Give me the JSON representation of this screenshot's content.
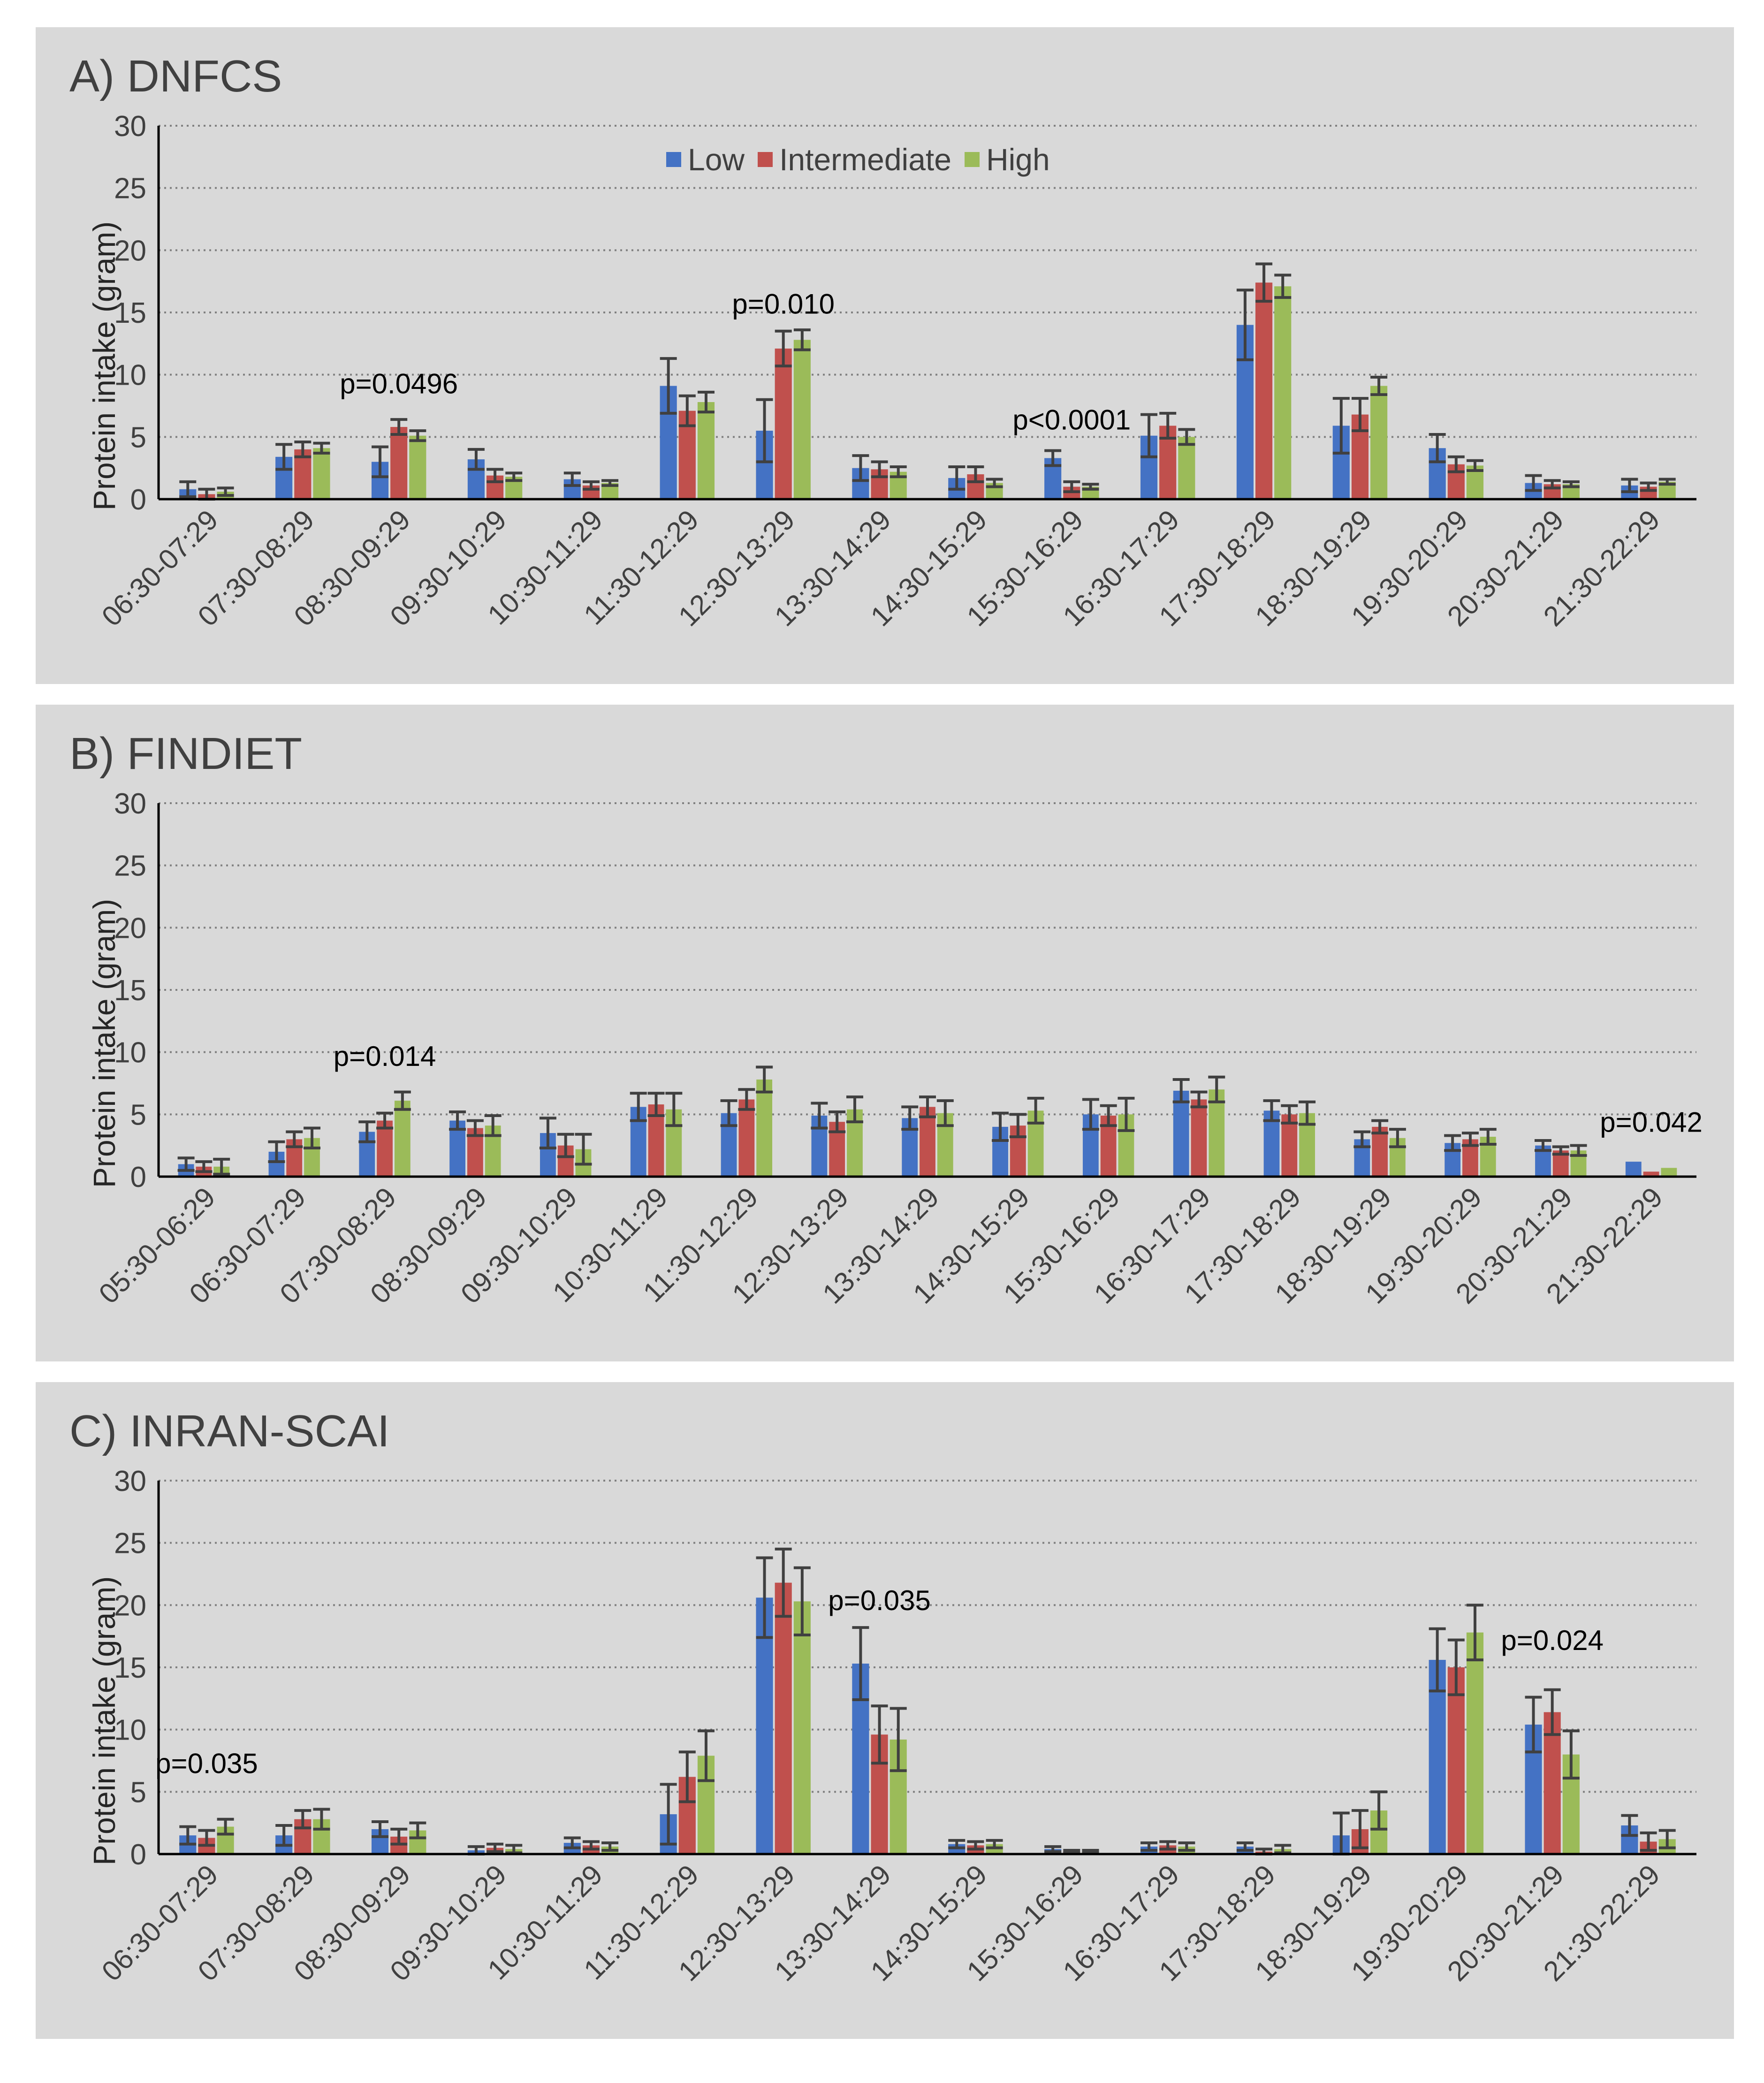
{
  "colors": {
    "low": "#4472c4",
    "intermediate": "#c0504d",
    "high": "#9bbb59",
    "panel_bg": "#d9d9d9",
    "axis": "#000000",
    "grid": "#808080",
    "text": "#404040"
  },
  "chart_data": [
    {
      "type": "bar",
      "title": "A) DNFCS",
      "ylabel": "Protein intake (gram)",
      "ylim": [
        0,
        30
      ],
      "yticks": [
        0,
        5,
        10,
        15,
        20,
        25,
        30
      ],
      "legend": [
        "Low",
        "Intermediate",
        "High"
      ],
      "legend_position": "top-center",
      "categories": [
        "06:30-07:29",
        "07:30-08:29",
        "08:30-09:29",
        "09:30-10:29",
        "10:30-11:29",
        "11:30-12:29",
        "12:30-13:29",
        "13:30-14:29",
        "14:30-15:29",
        "15:30-16:29",
        "16:30-17:29",
        "17:30-18:29",
        "18:30-19:29",
        "19:30-20:29",
        "20:30-21:29",
        "21:30-22:29"
      ],
      "series": [
        {
          "name": "Low",
          "values": [
            0.8,
            3.4,
            3.0,
            3.2,
            1.6,
            9.1,
            5.5,
            2.5,
            1.7,
            3.3,
            5.1,
            14.0,
            5.9,
            4.1,
            1.3,
            1.1
          ],
          "errors": [
            0.6,
            1.0,
            1.2,
            0.8,
            0.5,
            2.2,
            2.5,
            1.0,
            0.9,
            0.6,
            1.7,
            2.8,
            2.2,
            1.1,
            0.6,
            0.5
          ]
        },
        {
          "name": "Intermediate",
          "values": [
            0.4,
            4.0,
            5.8,
            1.9,
            1.1,
            7.1,
            12.1,
            2.4,
            2.0,
            1.0,
            5.9,
            17.4,
            6.8,
            2.8,
            1.2,
            1.0
          ],
          "errors": [
            0.4,
            0.6,
            0.6,
            0.5,
            0.3,
            1.2,
            1.4,
            0.6,
            0.6,
            0.4,
            1.0,
            1.5,
            1.3,
            0.6,
            0.3,
            0.3
          ]
        },
        {
          "name": "High",
          "values": [
            0.6,
            4.1,
            5.1,
            1.8,
            1.3,
            7.8,
            12.8,
            2.2,
            1.3,
            1.0,
            5.0,
            17.1,
            9.1,
            2.7,
            1.2,
            1.4
          ],
          "errors": [
            0.3,
            0.4,
            0.4,
            0.3,
            0.2,
            0.8,
            0.8,
            0.4,
            0.3,
            0.2,
            0.6,
            0.9,
            0.7,
            0.4,
            0.2,
            0.2
          ]
        }
      ],
      "annotations": [
        {
          "text": "p=0.0496",
          "category_index": 2,
          "value": 8.5
        },
        {
          "text": "p=0.010",
          "category_index": 6,
          "value": 14.9
        },
        {
          "text": "p<0.0001",
          "category_index": 9,
          "value": 5.6
        }
      ]
    },
    {
      "type": "bar",
      "title": "B) FINDIET",
      "ylabel": "Protein intake (gram)",
      "ylim": [
        0,
        30
      ],
      "yticks": [
        0,
        5,
        10,
        15,
        20,
        25,
        30
      ],
      "categories": [
        "05:30-06:29",
        "06:30-07:29",
        "07:30-08:29",
        "08:30-09:29",
        "09:30-10:29",
        "10:30-11:29",
        "11:30-12:29",
        "12:30-13:29",
        "13:30-14:29",
        "14:30-15:29",
        "15:30-16:29",
        "16:30-17:29",
        "17:30-18:29",
        "18:30-19:29",
        "19:30-20:29",
        "20:30-21:29",
        "21:30-22:29"
      ],
      "series": [
        {
          "name": "Low",
          "values": [
            1.0,
            2.0,
            3.6,
            4.5,
            3.5,
            5.6,
            5.1,
            4.9,
            4.7,
            4.0,
            5.0,
            6.9,
            5.3,
            3.0,
            2.7,
            2.5,
            1.2
          ],
          "errors": [
            0.5,
            0.8,
            0.8,
            0.7,
            1.2,
            1.1,
            1.0,
            1.0,
            0.9,
            1.1,
            1.2,
            0.9,
            0.8,
            0.6,
            0.6,
            0.4,
            0.0
          ]
        },
        {
          "name": "Intermediate",
          "values": [
            0.8,
            3.0,
            4.5,
            3.9,
            2.5,
            5.8,
            6.2,
            4.4,
            5.6,
            4.1,
            4.9,
            6.2,
            5.0,
            4.0,
            3.0,
            2.1,
            0.4
          ],
          "errors": [
            0.4,
            0.6,
            0.6,
            0.6,
            0.9,
            0.9,
            0.8,
            0.8,
            0.8,
            0.9,
            0.8,
            0.6,
            0.7,
            0.5,
            0.5,
            0.3,
            0.0
          ]
        },
        {
          "name": "High",
          "values": [
            0.8,
            3.1,
            6.1,
            4.1,
            2.2,
            5.4,
            7.8,
            5.4,
            5.1,
            5.3,
            5.0,
            7.0,
            5.1,
            3.1,
            3.2,
            2.1,
            0.7
          ],
          "errors": [
            0.6,
            0.8,
            0.7,
            0.8,
            1.2,
            1.3,
            1.0,
            1.0,
            1.0,
            1.0,
            1.3,
            1.0,
            0.9,
            0.7,
            0.6,
            0.4,
            0.0
          ]
        }
      ],
      "annotations": [
        {
          "text": "p=0.014",
          "category_index": 2,
          "value": 8.9
        },
        {
          "text": "p=0.042",
          "category_index": 16,
          "value": 3.6
        }
      ]
    },
    {
      "type": "bar",
      "title": "C) INRAN-SCAI",
      "ylabel": "Protein intake (gram)",
      "ylim": [
        0,
        30
      ],
      "yticks": [
        0,
        5,
        10,
        15,
        20,
        25,
        30
      ],
      "categories": [
        "06:30-07:29",
        "07:30-08:29",
        "08:30-09:29",
        "09:30-10:29",
        "10:30-11:29",
        "11:30-12:29",
        "12:30-13:29",
        "13:30-14:29",
        "14:30-15:29",
        "15:30-16:29",
        "16:30-17:29",
        "17:30-18:29",
        "18:30-19:29",
        "19:30-20:29",
        "20:30-21:29",
        "21:30-22:29"
      ],
      "series": [
        {
          "name": "Low",
          "values": [
            1.5,
            1.5,
            2.0,
            0.3,
            0.9,
            3.2,
            20.6,
            15.3,
            0.8,
            0.4,
            0.6,
            0.6,
            1.5,
            15.6,
            10.4,
            2.3
          ],
          "errors": [
            0.7,
            0.8,
            0.6,
            0.3,
            0.4,
            2.4,
            3.2,
            2.9,
            0.3,
            0.2,
            0.3,
            0.3,
            1.8,
            2.5,
            2.2,
            0.8
          ]
        },
        {
          "name": "Intermediate",
          "values": [
            1.3,
            2.8,
            1.4,
            0.5,
            0.7,
            6.2,
            21.8,
            9.6,
            0.7,
            0.2,
            0.7,
            0.2,
            2.0,
            15.0,
            11.4,
            1.0
          ],
          "errors": [
            0.6,
            0.7,
            0.6,
            0.3,
            0.3,
            2.0,
            2.7,
            2.3,
            0.3,
            0.1,
            0.3,
            0.2,
            1.5,
            2.2,
            1.8,
            0.7
          ]
        },
        {
          "name": "High",
          "values": [
            2.2,
            2.8,
            1.9,
            0.4,
            0.6,
            7.9,
            20.3,
            9.2,
            0.8,
            0.2,
            0.6,
            0.4,
            3.5,
            17.8,
            8.0,
            1.2
          ],
          "errors": [
            0.6,
            0.8,
            0.6,
            0.3,
            0.3,
            2.0,
            2.7,
            2.5,
            0.3,
            0.1,
            0.3,
            0.3,
            1.5,
            2.2,
            1.9,
            0.7
          ]
        }
      ],
      "annotations": [
        {
          "text": "p=0.035",
          "category_index": 0,
          "value": 6.5
        },
        {
          "text": "p=0.035",
          "category_index": 7,
          "value": 19.6
        },
        {
          "text": "p=0.024",
          "category_index": 14,
          "value": 16.4
        }
      ]
    }
  ]
}
